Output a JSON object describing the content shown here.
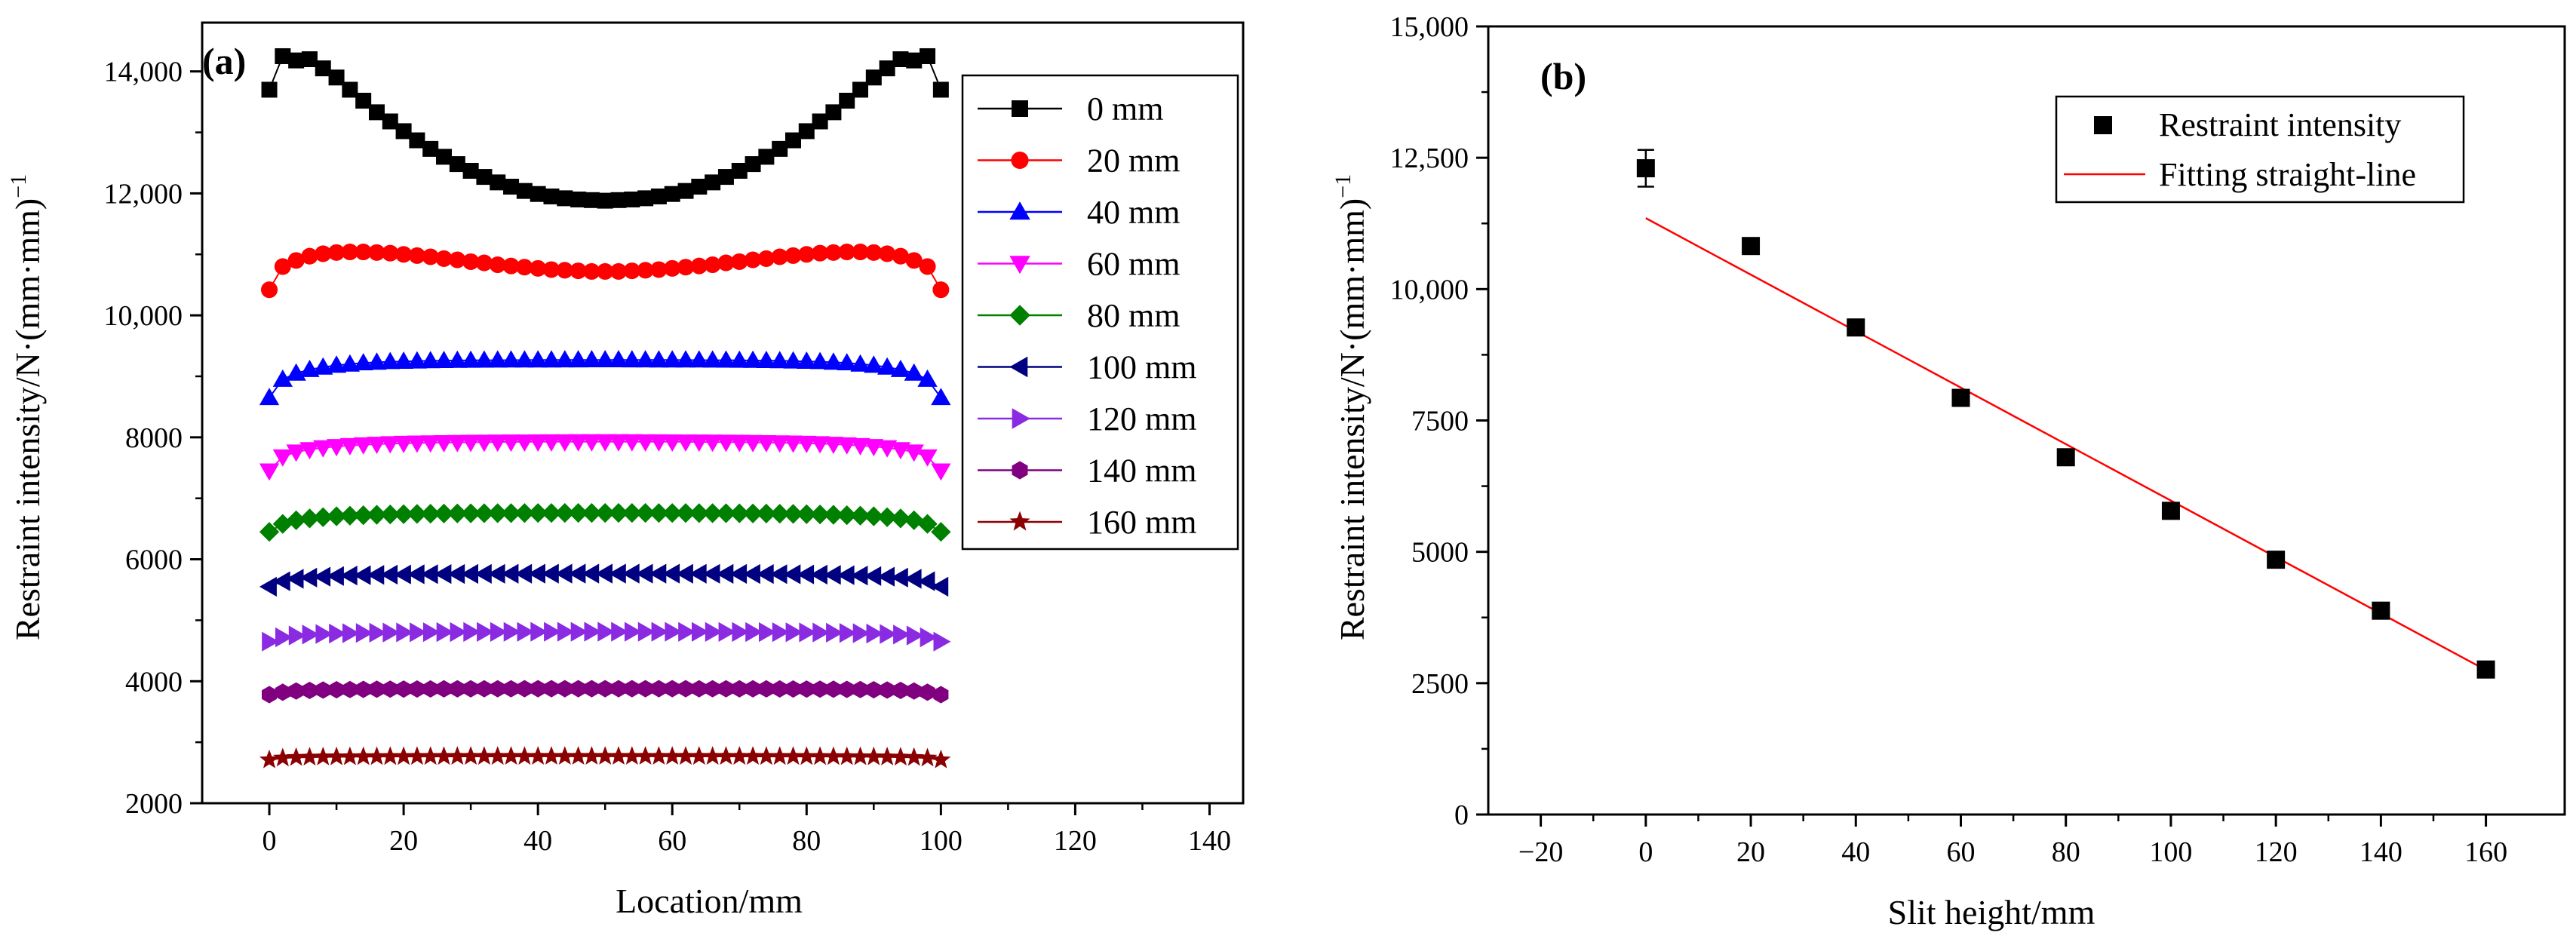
{
  "chart_data": [
    {
      "type": "scatter",
      "panel_label": "(a)",
      "xlabel": "Location/mm",
      "ylabel": "Restraint intensity/N·(mm·mm)",
      "ylabel_superscript": "−1",
      "xlim": [
        -10,
        145
      ],
      "ylim": [
        2000,
        14800
      ],
      "x_ticks": [
        0,
        20,
        40,
        60,
        80,
        100,
        120,
        140
      ],
      "x_tick_labels": [
        "0",
        "20",
        "40",
        "60",
        "80",
        "100",
        "120",
        "140"
      ],
      "y_ticks": [
        2000,
        4000,
        6000,
        8000,
        10000,
        12000,
        14000
      ],
      "y_tick_labels": [
        "2000",
        "4000",
        "6000",
        "8000",
        "10,000",
        "12,000",
        "14,000"
      ],
      "legend_position": "top-right",
      "x": [
        0,
        2,
        4,
        6,
        8,
        10,
        12,
        14,
        16,
        18,
        20,
        22,
        24,
        26,
        28,
        30,
        32,
        34,
        36,
        38,
        40,
        42,
        44,
        46,
        48,
        50,
        52,
        54,
        56,
        58,
        60,
        62,
        64,
        66,
        68,
        70,
        72,
        74,
        76,
        78,
        80,
        82,
        84,
        86,
        88,
        90,
        92,
        94,
        96,
        98,
        100
      ],
      "series": [
        {
          "name": "0 mm",
          "marker": "square",
          "color": "#000000",
          "values": [
            13700,
            14250,
            14180,
            14200,
            14050,
            13900,
            13700,
            13520,
            13330,
            13180,
            13020,
            12870,
            12730,
            12600,
            12480,
            12370,
            12270,
            12180,
            12110,
            12040,
            11990,
            11950,
            11920,
            11900,
            11890,
            11880,
            11890,
            11900,
            11920,
            11950,
            11990,
            12040,
            12110,
            12180,
            12270,
            12370,
            12480,
            12600,
            12730,
            12870,
            13020,
            13180,
            13330,
            13520,
            13700,
            13900,
            14050,
            14200,
            14180,
            14250,
            13700
          ]
        },
        {
          "name": "20 mm",
          "marker": "circle",
          "color": "#ff0000",
          "values": [
            10420,
            10800,
            10900,
            10970,
            11010,
            11030,
            11040,
            11040,
            11030,
            11020,
            11000,
            10980,
            10960,
            10930,
            10910,
            10880,
            10860,
            10830,
            10810,
            10790,
            10770,
            10750,
            10740,
            10730,
            10720,
            10720,
            10720,
            10730,
            10740,
            10750,
            10770,
            10790,
            10810,
            10830,
            10860,
            10880,
            10910,
            10930,
            10960,
            10980,
            11000,
            11020,
            11030,
            11040,
            11040,
            11030,
            11010,
            10970,
            10900,
            10800,
            10420
          ]
        },
        {
          "name": "40 mm",
          "marker": "triangle-up",
          "color": "#0000ff",
          "values": [
            8650,
            8950,
            9050,
            9110,
            9150,
            9180,
            9200,
            9220,
            9230,
            9240,
            9245,
            9250,
            9255,
            9258,
            9260,
            9262,
            9264,
            9265,
            9266,
            9267,
            9268,
            9268,
            9269,
            9269,
            9270,
            9270,
            9270,
            9269,
            9269,
            9268,
            9268,
            9267,
            9266,
            9265,
            9264,
            9262,
            9260,
            9258,
            9255,
            9250,
            9245,
            9240,
            9230,
            9220,
            9200,
            9180,
            9150,
            9110,
            9050,
            8950,
            8650
          ]
        },
        {
          "name": "60 mm",
          "marker": "triangle-down",
          "color": "#ff00ff",
          "values": [
            7450,
            7680,
            7760,
            7800,
            7830,
            7850,
            7865,
            7878,
            7888,
            7896,
            7902,
            7907,
            7911,
            7914,
            7917,
            7919,
            7921,
            7923,
            7924,
            7925,
            7926,
            7927,
            7927,
            7928,
            7928,
            7928,
            7928,
            7928,
            7927,
            7927,
            7926,
            7925,
            7924,
            7923,
            7921,
            7919,
            7917,
            7914,
            7911,
            7907,
            7902,
            7896,
            7888,
            7878,
            7865,
            7850,
            7830,
            7800,
            7760,
            7680,
            7450
          ]
        },
        {
          "name": "80 mm",
          "marker": "diamond",
          "color": "#008000",
          "values": [
            6450,
            6580,
            6640,
            6670,
            6690,
            6705,
            6715,
            6723,
            6730,
            6735,
            6740,
            6744,
            6747,
            6750,
            6752,
            6754,
            6755,
            6756,
            6757,
            6758,
            6759,
            6759,
            6760,
            6760,
            6760,
            6760,
            6760,
            6760,
            6760,
            6759,
            6759,
            6758,
            6757,
            6756,
            6755,
            6754,
            6752,
            6750,
            6747,
            6744,
            6740,
            6735,
            6730,
            6723,
            6715,
            6705,
            6690,
            6670,
            6640,
            6580,
            6450
          ]
        },
        {
          "name": "100 mm",
          "marker": "triangle-left",
          "color": "#000080",
          "values": [
            5550,
            5640,
            5680,
            5700,
            5715,
            5725,
            5733,
            5739,
            5744,
            5748,
            5751,
            5754,
            5756,
            5758,
            5759,
            5760,
            5761,
            5762,
            5763,
            5763,
            5764,
            5764,
            5764,
            5765,
            5765,
            5765,
            5765,
            5765,
            5764,
            5764,
            5764,
            5763,
            5763,
            5762,
            5761,
            5760,
            5759,
            5758,
            5756,
            5754,
            5751,
            5748,
            5744,
            5739,
            5733,
            5725,
            5715,
            5700,
            5680,
            5640,
            5550
          ]
        },
        {
          "name": "120 mm",
          "marker": "triangle-right",
          "color": "#8a2be2",
          "values": [
            4650,
            4720,
            4750,
            4765,
            4775,
            4782,
            4788,
            4792,
            4796,
            4799,
            4801,
            4803,
            4805,
            4806,
            4807,
            4808,
            4809,
            4809,
            4810,
            4810,
            4811,
            4811,
            4811,
            4811,
            4812,
            4812,
            4812,
            4811,
            4811,
            4811,
            4811,
            4810,
            4810,
            4809,
            4809,
            4808,
            4807,
            4806,
            4805,
            4803,
            4801,
            4799,
            4796,
            4792,
            4788,
            4782,
            4775,
            4765,
            4750,
            4720,
            4650
          ]
        },
        {
          "name": "140 mm",
          "marker": "hexagon",
          "color": "#800080",
          "values": [
            3780,
            3820,
            3840,
            3850,
            3856,
            3861,
            3864,
            3867,
            3869,
            3871,
            3872,
            3873,
            3874,
            3875,
            3876,
            3876,
            3877,
            3877,
            3877,
            3878,
            3878,
            3878,
            3878,
            3878,
            3878,
            3878,
            3878,
            3878,
            3878,
            3878,
            3878,
            3878,
            3877,
            3877,
            3877,
            3876,
            3876,
            3875,
            3874,
            3873,
            3872,
            3871,
            3869,
            3867,
            3864,
            3861,
            3856,
            3850,
            3840,
            3820,
            3780
          ]
        },
        {
          "name": "160 mm",
          "marker": "star",
          "color": "#8b0000",
          "values": [
            2710,
            2740,
            2750,
            2755,
            2758,
            2760,
            2762,
            2763,
            2764,
            2765,
            2765,
            2766,
            2766,
            2766,
            2767,
            2767,
            2767,
            2767,
            2767,
            2767,
            2768,
            2768,
            2768,
            2768,
            2768,
            2768,
            2768,
            2768,
            2768,
            2768,
            2768,
            2767,
            2767,
            2767,
            2767,
            2767,
            2767,
            2766,
            2766,
            2766,
            2765,
            2765,
            2764,
            2763,
            2762,
            2760,
            2758,
            2755,
            2750,
            2740,
            2710
          ]
        }
      ]
    },
    {
      "type": "scatter",
      "panel_label": "(b)",
      "xlabel": "Slit height/mm",
      "ylabel": "Restraint intensity/N·(mm·mm)",
      "ylabel_superscript": "−1",
      "xlim": [
        -30,
        175
      ],
      "ylim": [
        0,
        15000
      ],
      "x_ticks": [
        -20,
        0,
        20,
        40,
        60,
        80,
        100,
        120,
        140,
        160
      ],
      "x_tick_labels": [
        "−20",
        "0",
        "20",
        "40",
        "60",
        "80",
        "100",
        "120",
        "140",
        "160"
      ],
      "y_ticks": [
        0,
        2500,
        5000,
        7500,
        10000,
        12500,
        15000
      ],
      "y_tick_labels": [
        "0",
        "2500",
        "5000",
        "7500",
        "10,000",
        "12,500",
        "15,000"
      ],
      "legend_position": "top-right",
      "series": [
        {
          "name": "Restraint intensity",
          "marker": "square",
          "color": "#000000",
          "x": [
            0,
            20,
            40,
            60,
            80,
            100,
            120,
            140,
            160
          ],
          "values": [
            12300,
            10820,
            9270,
            7930,
            6800,
            5780,
            4850,
            3880,
            2760
          ],
          "error_minus": [
            350,
            0,
            0,
            0,
            0,
            0,
            0,
            0,
            0
          ],
          "error_plus": [
            350,
            0,
            0,
            0,
            0,
            0,
            0,
            0,
            0
          ]
        },
        {
          "name": "Fitting straight-line",
          "type": "line",
          "color": "#ff0000",
          "x": [
            0,
            160
          ],
          "values": [
            11350,
            2750
          ]
        }
      ]
    }
  ]
}
